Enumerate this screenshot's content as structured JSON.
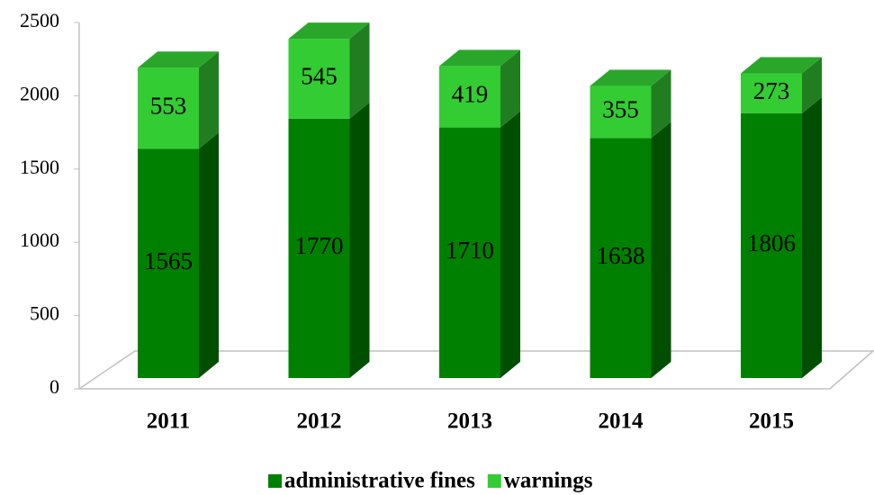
{
  "chart_data": {
    "type": "bar3d_stacked",
    "categories": [
      "2011",
      "2012",
      "2013",
      "2014",
      "2015"
    ],
    "series": [
      {
        "name": "administrative fines",
        "color": "#008000",
        "values": [
          1565,
          1770,
          1710,
          1638,
          1806
        ]
      },
      {
        "name": "warnings",
        "color": "#33cc33",
        "values": [
          553,
          545,
          419,
          355,
          273
        ]
      }
    ],
    "ylim": [
      0,
      2500
    ],
    "yticks": [
      0,
      500,
      1000,
      1500,
      2000,
      2500
    ],
    "legend": "bottom"
  }
}
